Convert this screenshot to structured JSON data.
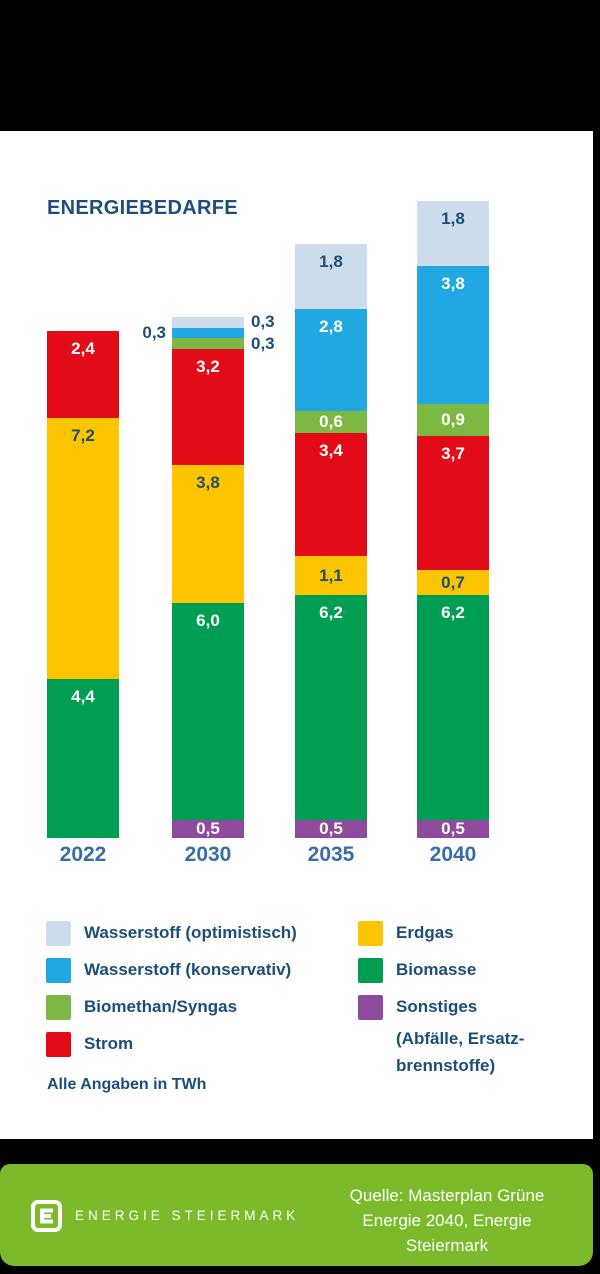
{
  "title": "ENERGIEBEDARFE",
  "note": "Alle Angaben in TWh",
  "palette": {
    "lightblue": "#cdddee",
    "blue": "#21a7e1",
    "lightgreen": "#7db843",
    "red": "#e30b17",
    "yellow": "#fdc400",
    "green": "#009e52",
    "purple": "#8e4a9c",
    "navy": "#1d4e7a",
    "year_blue": "#3a6da6",
    "footer_green": "#7aba2b",
    "background_black": "#000000",
    "card_white": "#ffffff"
  },
  "chart_data": {
    "type": "bar",
    "stacked": true,
    "unit": "TWh",
    "title": "ENERGIEBEDARFE",
    "categories": [
      "2022",
      "2030",
      "2035",
      "2040"
    ],
    "series": [
      {
        "name": "Wasserstoff (optimistisch)",
        "color": "#cdddee",
        "label_color": "#1d4e7a",
        "values": [
          0,
          0.3,
          1.8,
          1.8
        ]
      },
      {
        "name": "Wasserstoff (konservativ)",
        "color": "#21a7e1",
        "label_color": "#ffffff",
        "values": [
          0,
          0.3,
          2.8,
          3.8
        ]
      },
      {
        "name": "Biomethan/Syngas",
        "color": "#7db843",
        "label_color": "#ffffff",
        "values": [
          0,
          0.3,
          0.6,
          0.9
        ]
      },
      {
        "name": "Strom",
        "color": "#e30b17",
        "label_color": "#ffffff",
        "values": [
          2.4,
          3.2,
          3.4,
          3.7
        ]
      },
      {
        "name": "Erdgas",
        "color": "#fdc400",
        "label_color": "#1d4e7a",
        "values": [
          7.2,
          3.8,
          1.1,
          0.7
        ]
      },
      {
        "name": "Biomasse",
        "color": "#009e52",
        "label_color": "#ffffff",
        "values": [
          4.4,
          6.0,
          6.2,
          6.2
        ]
      },
      {
        "name": "Sonstiges (Abfälle, Ersatzbrennstoffe)",
        "color": "#8e4a9c",
        "label_color": "#ffffff",
        "values": [
          0,
          0.5,
          0.5,
          0.5
        ]
      }
    ],
    "decimal_separator": ",",
    "callouts": [
      {
        "category_index": 1,
        "series_index": 0,
        "side": "right",
        "text": "0,3"
      },
      {
        "category_index": 1,
        "series_index": 1,
        "side": "left",
        "text": "0,3"
      },
      {
        "category_index": 1,
        "series_index": 2,
        "side": "right",
        "text": "0,3"
      }
    ],
    "legend_position": "bottom"
  },
  "legend": {
    "left": [
      {
        "label": "Wasserstoff (optimistisch)",
        "color": "#cdddee"
      },
      {
        "label": "Wasserstoff (konservativ)",
        "color": "#21a7e1"
      },
      {
        "label": "Biomethan/Syngas",
        "color": "#7db843"
      },
      {
        "label": "Strom",
        "color": "#e30b17"
      }
    ],
    "right": [
      {
        "label": "Erdgas",
        "color": "#fdc400"
      },
      {
        "label": "Biomasse",
        "color": "#009e52"
      },
      {
        "label": "Sonstiges",
        "color": "#8e4a9c"
      }
    ],
    "sonstiges_extra_line1": "(Abfälle, Ersatz-",
    "sonstiges_extra_line2": "brennstoffe)"
  },
  "footer": {
    "brand": "ENERGIE STEIERMARK",
    "source_line1": "Quelle: Masterplan Grüne",
    "source_line2": "Energie 2040, Energie",
    "source_line3": "Steiermark"
  }
}
